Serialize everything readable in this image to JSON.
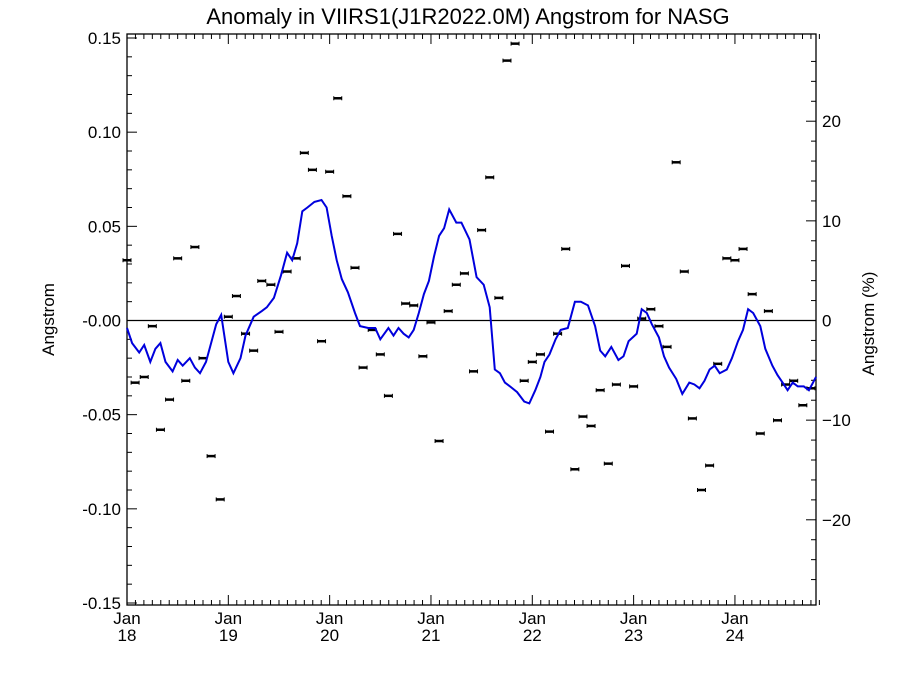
{
  "chart_data": {
    "type": "scatter",
    "title": "Anomaly in VIIRS1(J1R2022.0M) Angstrom for NASG",
    "ylabel": "Angstrom",
    "y2label": "Angstrom (%)",
    "xlabel": "",
    "xlim": [
      2018.0,
      2024.8
    ],
    "ylim": [
      -0.15,
      0.15
    ],
    "y2lim": [
      -27,
      27
    ],
    "grid": false,
    "x_ticks": [
      {
        "value": 2018,
        "line1": "Jan",
        "line2": "18"
      },
      {
        "value": 2019,
        "line1": "Jan",
        "line2": "19"
      },
      {
        "value": 2020,
        "line1": "Jan",
        "line2": "20"
      },
      {
        "value": 2021,
        "line1": "Jan",
        "line2": "21"
      },
      {
        "value": 2022,
        "line1": "Jan",
        "line2": "22"
      },
      {
        "value": 2023,
        "line1": "Jan",
        "line2": "23"
      },
      {
        "value": 2024,
        "line1": "Jan",
        "line2": "24"
      }
    ],
    "y_ticks": [
      {
        "value": 0.15,
        "label": "0.15"
      },
      {
        "value": 0.1,
        "label": "0.10"
      },
      {
        "value": 0.05,
        "label": "0.05"
      },
      {
        "value": 0.0,
        "label": "-0.00"
      },
      {
        "value": -0.05,
        "label": "-0.05"
      },
      {
        "value": -0.1,
        "label": "-0.10"
      },
      {
        "value": -0.15,
        "label": "-0.15"
      }
    ],
    "y2_ticks": [
      {
        "value": 20,
        "label": "20"
      },
      {
        "value": 10,
        "label": "10"
      },
      {
        "value": 0,
        "label": "0"
      },
      {
        "value": -10,
        "label": "−10"
      },
      {
        "value": -20,
        "label": "−20"
      }
    ],
    "zero_line": 0.0,
    "colors": {
      "points": "#000000",
      "smooth_line": "#0000dd",
      "axes": "#000000"
    },
    "series": [
      {
        "kind": "monthly-points",
        "x": [
          2018.0,
          2018.08,
          2018.17,
          2018.25,
          2018.33,
          2018.42,
          2018.5,
          2018.58,
          2018.67,
          2018.75,
          2018.83,
          2018.92,
          2019.0,
          2019.08,
          2019.17,
          2019.25,
          2019.33,
          2019.42,
          2019.5,
          2019.58,
          2019.67,
          2019.75,
          2019.83,
          2019.92,
          2020.0,
          2020.08,
          2020.17,
          2020.25,
          2020.33,
          2020.42,
          2020.5,
          2020.58,
          2020.67,
          2020.75,
          2020.83,
          2020.92,
          2021.0,
          2021.08,
          2021.17,
          2021.25,
          2021.33,
          2021.42,
          2021.5,
          2021.58,
          2021.67,
          2021.75,
          2021.83,
          2021.92,
          2022.0,
          2022.08,
          2022.17,
          2022.25,
          2022.33,
          2022.42,
          2022.5,
          2022.58,
          2022.67,
          2022.75,
          2022.83,
          2022.92,
          2023.0,
          2023.08,
          2023.17,
          2023.25,
          2023.33,
          2023.42,
          2023.5,
          2023.58,
          2023.67,
          2023.75,
          2023.83,
          2023.92,
          2024.0,
          2024.08,
          2024.17,
          2024.25,
          2024.33,
          2024.42,
          2024.5,
          2024.58,
          2024.67,
          2024.75
        ],
        "y": [
          0.032,
          -0.033,
          -0.03,
          -0.003,
          -0.058,
          -0.042,
          0.033,
          -0.032,
          0.039,
          -0.02,
          -0.072,
          -0.095,
          0.002,
          0.013,
          -0.007,
          -0.016,
          0.021,
          0.019,
          -0.006,
          0.026,
          0.033,
          0.089,
          0.08,
          -0.011,
          0.079,
          0.118,
          0.066,
          0.028,
          -0.025,
          -0.005,
          -0.018,
          -0.04,
          0.046,
          0.009,
          0.008,
          -0.019,
          -0.001,
          -0.064,
          0.005,
          0.019,
          0.025,
          -0.027,
          0.048,
          0.076,
          0.012,
          0.138,
          0.147,
          -0.032,
          -0.022,
          -0.018,
          -0.059,
          -0.007,
          0.038,
          -0.079,
          -0.051,
          -0.056,
          -0.037,
          -0.076,
          -0.034,
          0.029,
          -0.035,
          0.001,
          0.006,
          -0.003,
          -0.014,
          0.084,
          0.026,
          -0.052,
          -0.09,
          -0.077,
          -0.023,
          0.033,
          0.032,
          0.038,
          0.014,
          -0.06,
          0.005,
          -0.053,
          -0.034,
          -0.032,
          -0.045,
          -0.036
        ]
      },
      {
        "kind": "smoothed-line",
        "x": [
          2018.0,
          2018.05,
          2018.12,
          2018.17,
          2018.23,
          2018.28,
          2018.33,
          2018.38,
          2018.45,
          2018.5,
          2018.55,
          2018.62,
          2018.67,
          2018.72,
          2018.78,
          2018.83,
          2018.88,
          2018.93,
          2019.0,
          2019.05,
          2019.12,
          2019.17,
          2019.25,
          2019.33,
          2019.38,
          2019.45,
          2019.52,
          2019.58,
          2019.63,
          2019.68,
          2019.73,
          2019.78,
          2019.85,
          2019.92,
          2019.97,
          2020.02,
          2020.07,
          2020.12,
          2020.18,
          2020.25,
          2020.3,
          2020.38,
          2020.45,
          2020.5,
          2020.58,
          2020.63,
          2020.68,
          2020.73,
          2020.78,
          2020.83,
          2020.88,
          2020.93,
          2020.98,
          2021.03,
          2021.08,
          2021.13,
          2021.18,
          2021.25,
          2021.3,
          2021.38,
          2021.45,
          2021.52,
          2021.58,
          2021.63,
          2021.68,
          2021.73,
          2021.78,
          2021.85,
          2021.92,
          2021.97,
          2022.03,
          2022.08,
          2022.12,
          2022.17,
          2022.23,
          2022.28,
          2022.35,
          2022.42,
          2022.48,
          2022.55,
          2022.62,
          2022.67,
          2022.72,
          2022.78,
          2022.85,
          2022.9,
          2022.95,
          2023.03,
          2023.08,
          2023.13,
          2023.18,
          2023.25,
          2023.3,
          2023.35,
          2023.42,
          2023.48,
          2023.55,
          2023.6,
          2023.65,
          2023.7,
          2023.75,
          2023.8,
          2023.85,
          2023.92,
          2023.97,
          2024.03,
          2024.08,
          2024.13,
          2024.18,
          2024.25,
          2024.3,
          2024.37,
          2024.42,
          2024.47,
          2024.52,
          2024.57,
          2024.62,
          2024.68,
          2024.73,
          2024.77,
          2024.8
        ],
        "y": [
          -0.004,
          -0.012,
          -0.017,
          -0.013,
          -0.022,
          -0.015,
          -0.012,
          -0.022,
          -0.027,
          -0.021,
          -0.024,
          -0.02,
          -0.025,
          -0.028,
          -0.022,
          -0.012,
          -0.002,
          0.003,
          -0.022,
          -0.028,
          -0.02,
          -0.008,
          0.002,
          0.005,
          0.007,
          0.012,
          0.024,
          0.036,
          0.032,
          0.041,
          0.058,
          0.06,
          0.063,
          0.064,
          0.06,
          0.045,
          0.032,
          0.022,
          0.015,
          0.004,
          -0.003,
          -0.004,
          -0.004,
          -0.01,
          -0.004,
          -0.008,
          -0.004,
          -0.007,
          -0.009,
          -0.005,
          0.004,
          0.014,
          0.021,
          0.034,
          0.045,
          0.049,
          0.059,
          0.052,
          0.052,
          0.043,
          0.023,
          0.019,
          0.007,
          -0.026,
          -0.028,
          -0.033,
          -0.035,
          -0.038,
          -0.043,
          -0.044,
          -0.037,
          -0.03,
          -0.022,
          -0.018,
          -0.01,
          -0.005,
          -0.004,
          0.01,
          0.01,
          0.008,
          -0.003,
          -0.016,
          -0.019,
          -0.014,
          -0.021,
          -0.019,
          -0.011,
          -0.007,
          0.006,
          0.004,
          -0.002,
          -0.009,
          -0.019,
          -0.025,
          -0.031,
          -0.039,
          -0.033,
          -0.034,
          -0.036,
          -0.032,
          -0.026,
          -0.024,
          -0.028,
          -0.026,
          -0.02,
          -0.011,
          -0.005,
          0.006,
          0.004,
          -0.003,
          -0.015,
          -0.024,
          -0.029,
          -0.033,
          -0.037,
          -0.033,
          -0.035,
          -0.035,
          -0.037,
          -0.033,
          -0.03
        ]
      }
    ]
  }
}
